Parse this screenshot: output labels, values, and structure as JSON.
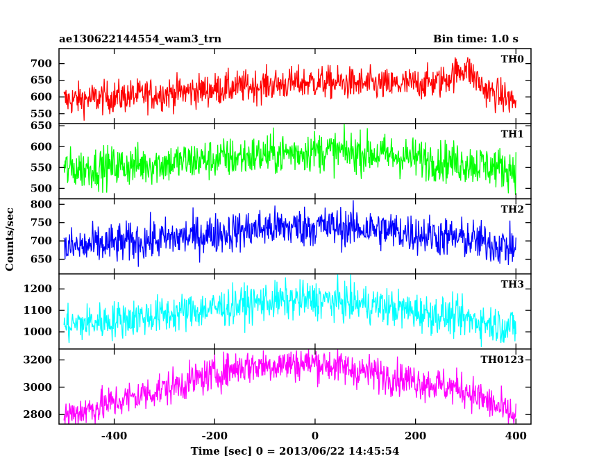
{
  "header": {
    "title": "ae130622144554_wam3_trn",
    "bin_time": "Bin time: 1.0 s"
  },
  "chart_data": {
    "type": "line",
    "title": "ae130622144554_wam3_trn",
    "subtitle": "Bin time: 1.0 s",
    "xlabel": "Time [sec] 0 = 2013/06/22 14:45:54",
    "ylabel": "Counts/sec",
    "xlim": [
      -510,
      430
    ],
    "x_ticks": [
      -400,
      -200,
      0,
      200,
      400
    ],
    "x_sample_step": 1,
    "x_range_data": [
      -500,
      400
    ],
    "panels": [
      {
        "name": "TH0",
        "color": "#ff0000",
        "ylim": [
          520,
          745
        ],
        "y_ticks": [
          550,
          600,
          650,
          700
        ],
        "trend": {
          "x": [
            -500,
            -300,
            -150,
            0,
            150,
            250,
            300,
            340,
            400
          ],
          "y": [
            590,
            610,
            630,
            645,
            635,
            645,
            690,
            620,
            585
          ]
        },
        "noise": 25
      },
      {
        "name": "TH1",
        "color": "#00ff00",
        "ylim": [
          475,
          655
        ],
        "y_ticks": [
          500,
          550,
          600,
          650
        ],
        "trend": {
          "x": [
            -500,
            -300,
            -100,
            0,
            100,
            300,
            400
          ],
          "y": [
            545,
            560,
            580,
            590,
            585,
            560,
            545
          ]
        },
        "noise": 25
      },
      {
        "name": "TH2",
        "color": "#0000ff",
        "ylim": [
          610,
          815
        ],
        "y_ticks": [
          650,
          700,
          750,
          800
        ],
        "trend": {
          "x": [
            -500,
            -300,
            -100,
            0,
            100,
            300,
            400
          ],
          "y": [
            680,
            705,
            735,
            740,
            735,
            705,
            680
          ]
        },
        "noise": 28
      },
      {
        "name": "TH3",
        "color": "#00ffff",
        "ylim": [
          920,
          1270
        ],
        "y_ticks": [
          1000,
          1100,
          1200
        ],
        "trend": {
          "x": [
            -500,
            -300,
            -100,
            0,
            100,
            300,
            400
          ],
          "y": [
            1030,
            1080,
            1140,
            1150,
            1130,
            1060,
            1020
          ]
        },
        "noise": 45
      },
      {
        "name": "TH0123",
        "color": "#ff00ff",
        "ylim": [
          2730,
          3280
        ],
        "y_ticks": [
          2800,
          3000,
          3200
        ],
        "trend": {
          "x": [
            -500,
            -300,
            -150,
            0,
            150,
            300,
            400
          ],
          "y": [
            2790,
            2990,
            3150,
            3180,
            3080,
            2980,
            2780
          ]
        },
        "noise": 65
      }
    ]
  }
}
